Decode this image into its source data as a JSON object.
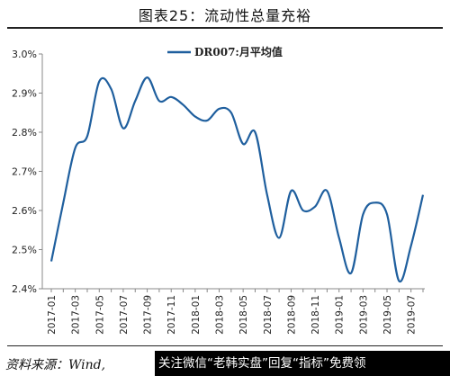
{
  "figure_title": "图表25：流动性总量充裕",
  "source_text": "资料来源：Wind,",
  "watermark_text": "关注微信“老韩实盘”回复“指标”免费领",
  "chart_data": {
    "type": "line",
    "title": "",
    "xlabel": "",
    "ylabel": "",
    "legend": "top-center",
    "grid": false,
    "ylim": [
      0.024,
      0.03
    ],
    "yticks": [
      "3.0%",
      "2.9%",
      "2.8%",
      "2.7%",
      "2.6%",
      "2.5%",
      "2.4%"
    ],
    "ytick_values": [
      0.03,
      0.029,
      0.028,
      0.027,
      0.026,
      0.025,
      0.024
    ],
    "xticks": [
      "2017-01",
      "2017-03",
      "2017-05",
      "2017-07",
      "2017-09",
      "2017-11",
      "2018-01",
      "2018-03",
      "2018-05",
      "2018-07",
      "2018-09",
      "2018-11",
      "2019-01",
      "2019-03",
      "2019-05",
      "2019-07"
    ],
    "color": "#1f5f9e",
    "series": [
      {
        "name": "DR007:月平均值",
        "x": [
          "2017-01",
          "2017-02",
          "2017-03",
          "2017-04",
          "2017-05",
          "2017-06",
          "2017-07",
          "2017-08",
          "2017-09",
          "2017-10",
          "2017-11",
          "2017-12",
          "2018-01",
          "2018-02",
          "2018-03",
          "2018-04",
          "2018-05",
          "2018-06",
          "2018-07",
          "2018-08",
          "2018-09",
          "2018-10",
          "2018-11",
          "2018-12",
          "2019-01",
          "2019-02",
          "2019-03",
          "2019-04",
          "2019-05",
          "2019-06",
          "2019-07",
          "2019-08"
        ],
        "values": [
          0.0247,
          0.0262,
          0.0276,
          0.0279,
          0.0293,
          0.0291,
          0.0281,
          0.0288,
          0.0294,
          0.0288,
          0.0289,
          0.0287,
          0.0284,
          0.0283,
          0.0286,
          0.0285,
          0.0277,
          0.028,
          0.0264,
          0.0253,
          0.0265,
          0.026,
          0.0261,
          0.0265,
          0.0253,
          0.0244,
          0.0259,
          0.0262,
          0.0259,
          0.0242,
          0.0251,
          0.0264
        ]
      }
    ]
  }
}
